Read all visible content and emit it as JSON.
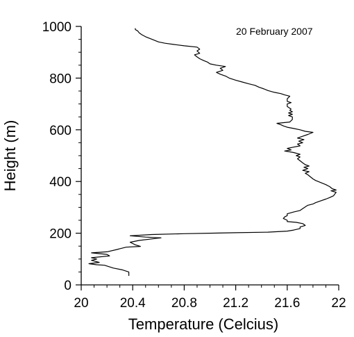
{
  "chart_data": {
    "type": "line",
    "annotation": "20 February 2007",
    "xlabel": "Temperature (Celcius)",
    "ylabel": "Height (m)",
    "xlim": [
      20,
      22
    ],
    "ylim": [
      0,
      1000
    ],
    "xticks": [
      20,
      20.4,
      20.8,
      21.2,
      21.6,
      22
    ],
    "xtick_labels": [
      "20",
      "20.4",
      "20.8",
      "21.2",
      "21.6",
      "22"
    ],
    "yticks": [
      0,
      200,
      400,
      600,
      800,
      1000
    ],
    "ytick_labels": [
      "0",
      "200",
      "400",
      "600",
      "800",
      "1000"
    ],
    "grid": false,
    "series": [
      {
        "color": "#000000",
        "points": [
          [
            20.37,
            35
          ],
          [
            20.37,
            50
          ],
          [
            20.32,
            58
          ],
          [
            20.25,
            65
          ],
          [
            20.18,
            76
          ],
          [
            20.12,
            78
          ],
          [
            20.06,
            82
          ],
          [
            20.14,
            87
          ],
          [
            20.08,
            95
          ],
          [
            20.12,
            100
          ],
          [
            20.08,
            105
          ],
          [
            20.22,
            112
          ],
          [
            20.2,
            118
          ],
          [
            20.08,
            124
          ],
          [
            20.2,
            128
          ],
          [
            20.28,
            137
          ],
          [
            20.3,
            140
          ],
          [
            20.35,
            146
          ],
          [
            20.46,
            149
          ],
          [
            20.42,
            155
          ],
          [
            20.38,
            165
          ],
          [
            20.45,
            172
          ],
          [
            20.55,
            178
          ],
          [
            20.62,
            182
          ],
          [
            20.5,
            185
          ],
          [
            20.38,
            190
          ],
          [
            20.55,
            195
          ],
          [
            20.8,
            198
          ],
          [
            21.0,
            200
          ],
          [
            21.2,
            202
          ],
          [
            21.45,
            204
          ],
          [
            21.6,
            208
          ],
          [
            21.65,
            212
          ],
          [
            21.7,
            218
          ],
          [
            21.7,
            224
          ],
          [
            21.74,
            230
          ],
          [
            21.72,
            237
          ],
          [
            21.67,
            242
          ],
          [
            21.6,
            245
          ],
          [
            21.6,
            250
          ],
          [
            21.57,
            257
          ],
          [
            21.58,
            263
          ],
          [
            21.6,
            268
          ],
          [
            21.6,
            275
          ],
          [
            21.65,
            282
          ],
          [
            21.7,
            288
          ],
          [
            21.72,
            295
          ],
          [
            21.74,
            302
          ],
          [
            21.76,
            308
          ],
          [
            21.8,
            313
          ],
          [
            21.82,
            318
          ],
          [
            21.86,
            325
          ],
          [
            21.9,
            332
          ],
          [
            21.93,
            338
          ],
          [
            21.96,
            345
          ],
          [
            21.97,
            352
          ],
          [
            21.98,
            358
          ],
          [
            21.94,
            364
          ],
          [
            21.98,
            367
          ],
          [
            21.95,
            372
          ],
          [
            21.93,
            380
          ],
          [
            21.9,
            388
          ],
          [
            21.86,
            396
          ],
          [
            21.82,
            404
          ],
          [
            21.8,
            410
          ],
          [
            21.78,
            418
          ],
          [
            21.76,
            426
          ],
          [
            21.74,
            432
          ],
          [
            21.77,
            438
          ],
          [
            21.72,
            443
          ],
          [
            21.76,
            450
          ],
          [
            21.73,
            455
          ],
          [
            21.77,
            460
          ],
          [
            21.74,
            465
          ],
          [
            21.72,
            472
          ],
          [
            21.7,
            480
          ],
          [
            21.68,
            488
          ],
          [
            21.7,
            495
          ],
          [
            21.67,
            500
          ],
          [
            21.7,
            505
          ],
          [
            21.65,
            512
          ],
          [
            21.58,
            518
          ],
          [
            21.63,
            522
          ],
          [
            21.6,
            528
          ],
          [
            21.65,
            533
          ],
          [
            21.7,
            538
          ],
          [
            21.68,
            545
          ],
          [
            21.72,
            550
          ],
          [
            21.69,
            556
          ],
          [
            21.73,
            562
          ],
          [
            21.68,
            568
          ],
          [
            21.72,
            575
          ],
          [
            21.76,
            582
          ],
          [
            21.8,
            590
          ],
          [
            21.74,
            594
          ],
          [
            21.7,
            600
          ],
          [
            21.65,
            605
          ],
          [
            21.6,
            610
          ],
          [
            21.57,
            615
          ],
          [
            21.55,
            620
          ],
          [
            21.52,
            625
          ],
          [
            21.58,
            628
          ],
          [
            21.62,
            630
          ],
          [
            21.64,
            640
          ],
          [
            21.64,
            650
          ],
          [
            21.61,
            655
          ],
          [
            21.64,
            660
          ],
          [
            21.61,
            665
          ],
          [
            21.64,
            670
          ],
          [
            21.62,
            675
          ],
          [
            21.63,
            680
          ],
          [
            21.6,
            690
          ],
          [
            21.6,
            700
          ],
          [
            21.63,
            705
          ],
          [
            21.6,
            710
          ],
          [
            21.6,
            720
          ],
          [
            21.62,
            730
          ],
          [
            21.58,
            735
          ],
          [
            21.55,
            740
          ],
          [
            21.5,
            745
          ],
          [
            21.45,
            752
          ],
          [
            21.42,
            758
          ],
          [
            21.38,
            765
          ],
          [
            21.35,
            772
          ],
          [
            21.3,
            778
          ],
          [
            21.25,
            785
          ],
          [
            21.2,
            792
          ],
          [
            21.15,
            800
          ],
          [
            21.12,
            808
          ],
          [
            21.08,
            815
          ],
          [
            21.05,
            822
          ],
          [
            21.1,
            830
          ],
          [
            21.08,
            838
          ],
          [
            21.12,
            845
          ],
          [
            21.05,
            850
          ],
          [
            21.0,
            855
          ],
          [
            20.98,
            862
          ],
          [
            20.95,
            868
          ],
          [
            20.92,
            875
          ],
          [
            20.9,
            882
          ],
          [
            20.88,
            890
          ],
          [
            20.92,
            896
          ],
          [
            20.9,
            905
          ],
          [
            20.92,
            912
          ],
          [
            20.9,
            920
          ],
          [
            20.8,
            925
          ],
          [
            20.72,
            930
          ],
          [
            20.65,
            935
          ],
          [
            20.6,
            940
          ],
          [
            20.55,
            950
          ],
          [
            20.5,
            960
          ],
          [
            20.47,
            968
          ],
          [
            20.45,
            975
          ],
          [
            20.44,
            982
          ],
          [
            20.42,
            988
          ],
          [
            20.42,
            993
          ]
        ]
      }
    ]
  }
}
